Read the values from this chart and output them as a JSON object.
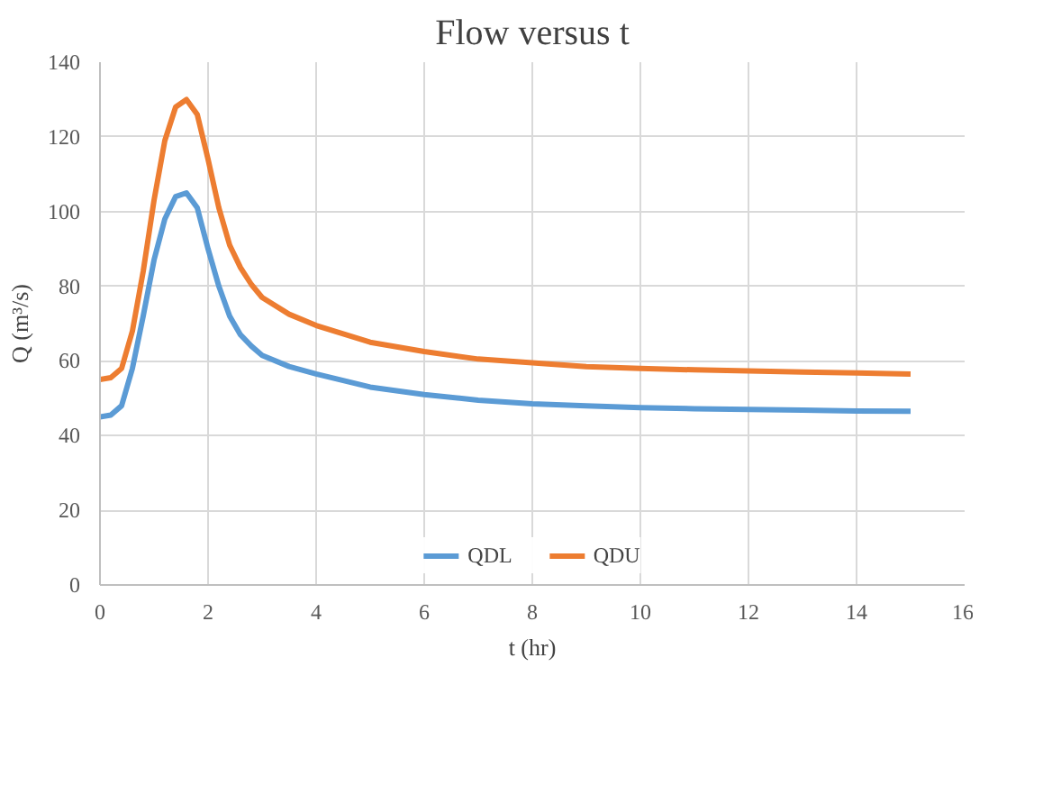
{
  "chart_data": {
    "type": "line",
    "title": "Flow versus t",
    "xlabel": "t (hr)",
    "ylabel": "Q (m³/s)",
    "x": [
      0,
      0.2,
      0.4,
      0.6,
      0.8,
      1.0,
      1.2,
      1.4,
      1.6,
      1.8,
      2.0,
      2.2,
      2.4,
      2.6,
      2.8,
      3,
      3.5,
      4,
      5,
      6,
      7,
      8,
      9,
      10,
      11,
      12,
      13,
      14,
      15
    ],
    "series": [
      {
        "name": "QDL",
        "color": "#5b9bd5",
        "values": [
          45,
          45.5,
          48,
          58,
          72,
          87,
          98,
          104,
          105,
          101,
          90,
          80,
          72,
          67,
          64,
          61.5,
          58.5,
          56.5,
          53,
          51,
          49.5,
          48.5,
          48,
          47.5,
          47.2,
          47,
          46.8,
          46.6,
          46.5
        ]
      },
      {
        "name": "QDU",
        "color": "#ed7d31",
        "values": [
          55,
          55.5,
          58,
          68,
          84,
          103,
          119,
          128,
          130,
          126,
          114,
          101,
          91,
          85,
          80.5,
          77,
          72.5,
          69.5,
          65,
          62.5,
          60.5,
          59.5,
          58.5,
          58,
          57.6,
          57.3,
          57,
          56.8,
          56.5
        ]
      }
    ],
    "xlim": [
      0,
      16
    ],
    "xticks": [
      0,
      2,
      4,
      6,
      8,
      10,
      12,
      14,
      16
    ],
    "ylim": [
      0,
      140
    ],
    "yticks": [
      0,
      20,
      40,
      60,
      80,
      100,
      120,
      140
    ],
    "grid": true,
    "legend": "bottom",
    "marker": "none",
    "line_style": "solid"
  }
}
